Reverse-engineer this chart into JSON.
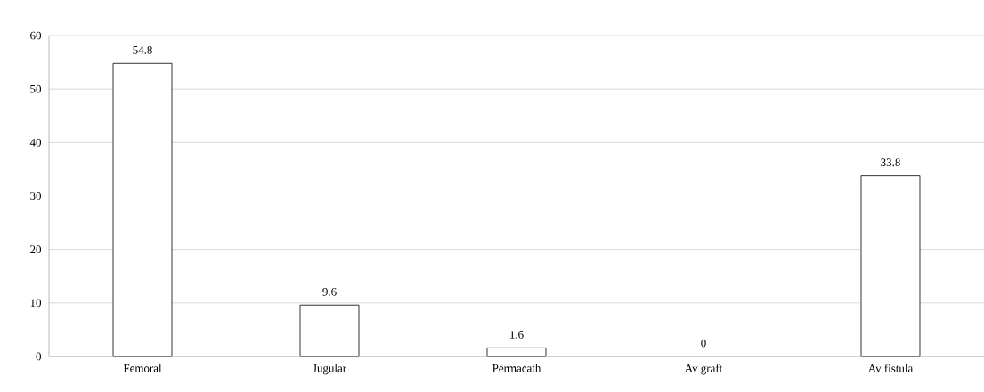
{
  "chart_data": {
    "type": "bar",
    "categories": [
      "Femoral",
      "Jugular",
      "Permacath",
      "Av graft",
      "Av fistula"
    ],
    "values": [
      54.8,
      9.6,
      1.6,
      0,
      33.8
    ],
    "color": "#ffffff",
    "ylim": [
      0,
      60
    ],
    "yticks": [
      0,
      10,
      20,
      30,
      40,
      50,
      60
    ],
    "grid": "y",
    "data_labels": true
  }
}
